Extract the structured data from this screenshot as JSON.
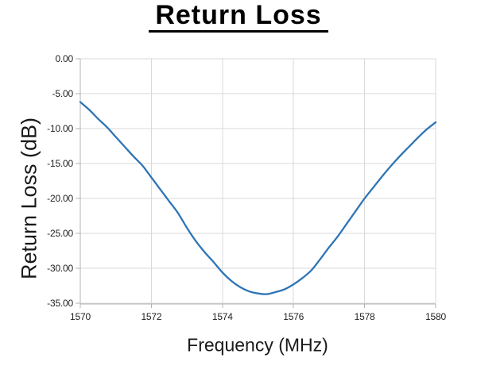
{
  "page": {
    "background": "#ffffff"
  },
  "chart_data": {
    "type": "line",
    "title": "Return Loss",
    "xlabel": "Frequency (MHz)",
    "ylabel": "Return Loss (dB)",
    "xlim": [
      1570,
      1580
    ],
    "ylim": [
      -35,
      0
    ],
    "grid": true,
    "legend_position": "none",
    "line_color": "#2e75b6",
    "grid_color": "#d9d9d9",
    "axis_color": "#b3b3b3",
    "text_color": "#1f1f1f",
    "x_ticks": {
      "values": [
        1570,
        1572,
        1574,
        1576,
        1578,
        1580
      ],
      "labels": [
        "1570",
        "1572",
        "1574",
        "1576",
        "1578",
        "1580"
      ]
    },
    "y_ticks": {
      "values": [
        0,
        -5,
        -10,
        -15,
        -20,
        -25,
        -30,
        -35
      ],
      "labels": [
        "0.00",
        "-5.00",
        "-10.00",
        "-15.00",
        "-20.00",
        "-25.00",
        "-30.00",
        "-35.00"
      ]
    },
    "series": [
      {
        "name": "Return Loss",
        "x": [
          1570.0,
          1570.25,
          1570.5,
          1570.75,
          1571.0,
          1571.25,
          1571.5,
          1571.75,
          1572.0,
          1572.25,
          1572.5,
          1572.75,
          1573.0,
          1573.25,
          1573.5,
          1573.75,
          1574.0,
          1574.25,
          1574.5,
          1574.75,
          1575.0,
          1575.25,
          1575.5,
          1575.75,
          1576.0,
          1576.25,
          1576.5,
          1576.75,
          1577.0,
          1577.25,
          1577.5,
          1577.75,
          1578.0,
          1578.25,
          1578.5,
          1578.75,
          1579.0,
          1579.25,
          1579.5,
          1579.75,
          1580.0
        ],
        "y": [
          -6.2,
          -7.3,
          -8.6,
          -9.8,
          -11.2,
          -12.6,
          -14.0,
          -15.3,
          -17.0,
          -18.7,
          -20.4,
          -22.1,
          -24.2,
          -26.1,
          -27.7,
          -29.1,
          -30.6,
          -31.8,
          -32.7,
          -33.3,
          -33.6,
          -33.7,
          -33.4,
          -33.0,
          -32.3,
          -31.4,
          -30.3,
          -28.7,
          -27.0,
          -25.4,
          -23.6,
          -21.8,
          -20.0,
          -18.4,
          -16.8,
          -15.3,
          -13.9,
          -12.6,
          -11.3,
          -10.1,
          -9.1
        ]
      }
    ]
  }
}
